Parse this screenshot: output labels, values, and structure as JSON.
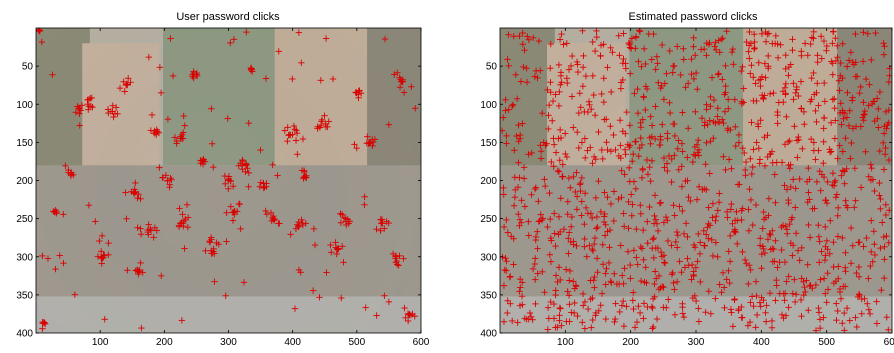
{
  "chart_data": [
    {
      "type": "scatter",
      "title": "User password clicks",
      "xlabel": "",
      "ylabel": "",
      "xlim": [
        0,
        600
      ],
      "ylim": [
        0,
        400
      ],
      "y_reversed": true,
      "grid": false,
      "legend": "none",
      "xticks": [
        100,
        200,
        300,
        400,
        500,
        600
      ],
      "yticks": [
        50,
        100,
        150,
        200,
        250,
        300,
        350,
        400
      ],
      "marker": "plus",
      "marker_color": "#d90000",
      "background": "street-photo",
      "clusters": [
        [
          5,
          3,
          3
        ],
        [
          12,
          387,
          6
        ],
        [
          30,
          240,
          8
        ],
        [
          55,
          190,
          14
        ],
        [
          68,
          105,
          18
        ],
        [
          85,
          100,
          20
        ],
        [
          105,
          300,
          25
        ],
        [
          120,
          110,
          22
        ],
        [
          140,
          75,
          22
        ],
        [
          155,
          215,
          35
        ],
        [
          160,
          320,
          18
        ],
        [
          175,
          265,
          30
        ],
        [
          185,
          135,
          18
        ],
        [
          205,
          200,
          22
        ],
        [
          225,
          145,
          22
        ],
        [
          230,
          255,
          28
        ],
        [
          245,
          60,
          18
        ],
        [
          260,
          175,
          18
        ],
        [
          275,
          290,
          30
        ],
        [
          300,
          200,
          25
        ],
        [
          310,
          240,
          30
        ],
        [
          325,
          180,
          28
        ],
        [
          335,
          55,
          10
        ],
        [
          355,
          205,
          22
        ],
        [
          370,
          250,
          28
        ],
        [
          395,
          140,
          30
        ],
        [
          410,
          260,
          26
        ],
        [
          420,
          195,
          22
        ],
        [
          445,
          125,
          25
        ],
        [
          470,
          290,
          28
        ],
        [
          480,
          250,
          25
        ],
        [
          500,
          85,
          18
        ],
        [
          520,
          150,
          22
        ],
        [
          540,
          255,
          30
        ],
        [
          560,
          300,
          30
        ],
        [
          570,
          70,
          10
        ],
        [
          580,
          375,
          25
        ]
      ],
      "scatter_points": 300
    },
    {
      "type": "scatter",
      "title": "Estimated password clicks",
      "xlabel": "",
      "ylabel": "",
      "xlim": [
        0,
        600
      ],
      "ylim": [
        0,
        400
      ],
      "y_reversed": true,
      "grid": false,
      "legend": "none",
      "xticks": [
        100,
        200,
        300,
        400,
        500,
        600
      ],
      "yticks": [
        50,
        100,
        150,
        200,
        250,
        300,
        350,
        400
      ],
      "marker": "plus",
      "marker_color": "#d90000",
      "background": "street-photo",
      "scatter_points": 1300
    }
  ]
}
